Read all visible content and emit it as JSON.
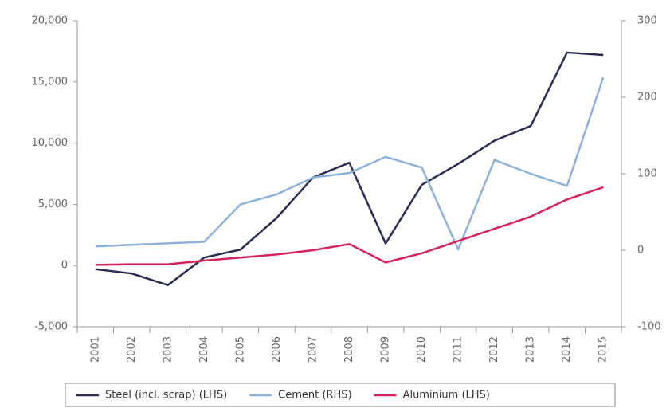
{
  "chart_data": {
    "type": "line",
    "categories": [
      "2001",
      "2002",
      "2003",
      "2004",
      "2005",
      "2006",
      "2007",
      "2008",
      "2009",
      "2010",
      "2011",
      "2012",
      "2013",
      "2014",
      "2015"
    ],
    "series": [
      {
        "name": "Steel (incl. scrap) (LHS)",
        "color": "#2a2d4f",
        "axis": "y",
        "values": [
          -300,
          -650,
          -1600,
          650,
          1300,
          3900,
          7200,
          8400,
          1800,
          6600,
          8300,
          10200,
          11400,
          17400,
          17200
        ]
      },
      {
        "name": "Cement (RHS)",
        "color": "#8fb0d8",
        "axis": "y2",
        "values": [
          5,
          7,
          9,
          11,
          60,
          73,
          95,
          101,
          122,
          108,
          1,
          118,
          100,
          84,
          226
        ]
      },
      {
        "name": "Aluminium (LHS)",
        "color": "#d6245a",
        "axis": "y",
        "values": [
          50,
          100,
          100,
          400,
          650,
          900,
          1250,
          1750,
          250,
          1000,
          2000,
          3000,
          4000,
          5400,
          6400
        ]
      }
    ],
    "ylim": [
      -5000,
      20000
    ],
    "yticks": [
      {
        "value": -5000,
        "label": "-5,000"
      },
      0,
      {
        "value": 5000,
        "label": "5,000"
      },
      {
        "value": 10000,
        "label": "10,000"
      },
      {
        "value": 15000,
        "label": "15,000"
      },
      {
        "value": 20000,
        "label": "20,000"
      }
    ],
    "y2lim": [
      -100,
      300
    ],
    "y2ticks": [
      -100,
      0,
      100,
      200,
      300
    ],
    "grid": false,
    "legend": "bottom"
  }
}
